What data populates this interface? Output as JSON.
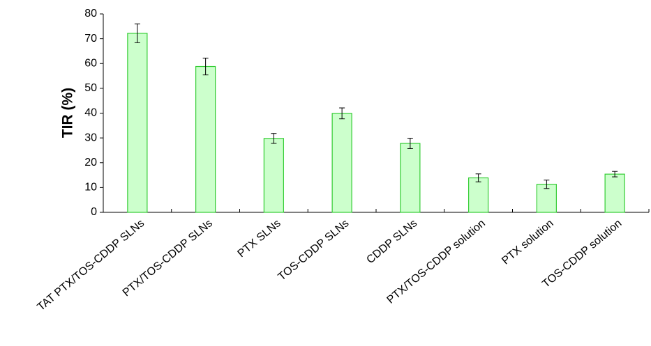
{
  "chart_data": {
    "type": "bar",
    "y_label": "TIR (%)",
    "categories": [
      "TAT PTX/TOS-CDDP SLNs",
      "PTX/TOS-CDDP SLNs",
      "PTX SLNs",
      "TOS-CDDP SLNs",
      "CDDP SLNs",
      "PTX/TOS-CDDP solution",
      "PTX solution",
      "TOS-CDDP solution"
    ],
    "values": [
      72.2,
      58.8,
      29.8,
      39.9,
      27.8,
      13.9,
      11.3,
      15.4
    ],
    "errors": [
      3.8,
      3.4,
      2.0,
      2.2,
      2.1,
      1.6,
      1.7,
      1.1
    ],
    "color": "#ccffcc",
    "edge_color": "#33cc33",
    "ylim": [
      0,
      80
    ],
    "yticks": [
      0,
      10,
      20,
      30,
      40,
      50,
      60,
      70,
      80
    ],
    "grid": false
  }
}
